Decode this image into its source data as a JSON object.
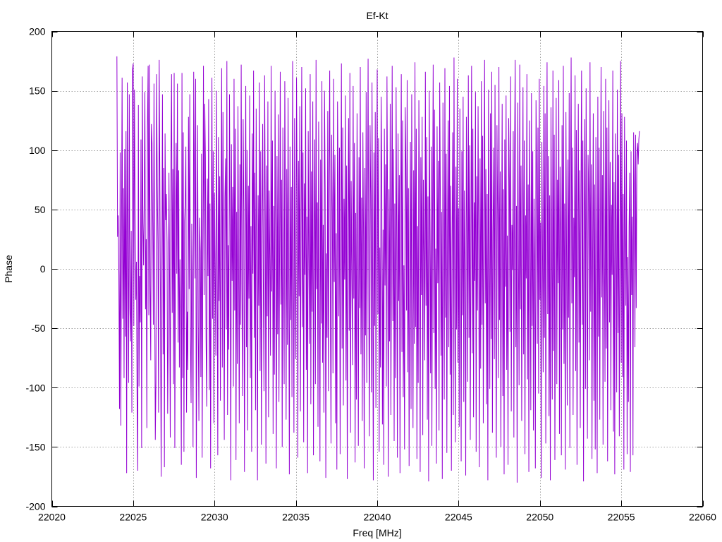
{
  "chart_data": {
    "type": "line",
    "title": "Ef-Kt",
    "xlabel": "Freq [MHz]",
    "ylabel": "Phase",
    "xlim": [
      22020,
      22060
    ],
    "ylim": [
      -200,
      200
    ],
    "xticks": [
      22020,
      22025,
      22030,
      22035,
      22040,
      22045,
      22050,
      22055,
      22060
    ],
    "yticks": [
      -200,
      -150,
      -100,
      -50,
      0,
      50,
      100,
      150,
      200
    ],
    "grid": true,
    "legend": "none",
    "series": [
      {
        "color": "#9400d3",
        "x_range": [
          22024.0,
          22056.0
        ],
        "x_step": 0.04,
        "values": [
          179,
          27,
          45,
          -5,
          -118,
          98,
          -132,
          20,
          161,
          -42,
          68,
          -92,
          101,
          -57,
          116,
          -172,
          157,
          16,
          -96,
          147,
          -33,
          -61,
          32,
          -121,
          168,
          173,
          -48,
          151,
          53,
          -26,
          6,
          -107,
          -170,
          138,
          -99,
          -6,
          -45,
          109,
          -151,
          162,
          39,
          3,
          59,
          149,
          -34,
          25,
          -134,
          120,
          171,
          -39,
          172,
          -14,
          -77,
          122,
          106,
          39,
          -47,
          156,
          1,
          -144,
          -95,
          164,
          71,
          22,
          -121,
          176,
          72,
          -33,
          -175,
          -6,
          147,
          -72,
          85,
          -167,
          114,
          41,
          63,
          23,
          -122,
          -48,
          81,
          -12,
          -142,
          90,
          164,
          -37,
          84,
          -97,
          165,
          -151,
          27,
          106,
          -4,
          156,
          -62,
          83,
          -83,
          8,
          -53,
          -165,
          165,
          -92,
          115,
          -154,
          40,
          57,
          103,
          -121,
          -36,
          -85,
          128,
          -17,
          147,
          -60,
          -113,
          38,
          -20,
          -150,
          166,
          82,
          -8,
          160,
          -176,
          -15,
          121,
          -44,
          -128,
          43,
          15,
          -91,
          97,
          -159,
          3,
          171,
          -22,
          139,
          94,
          -58,
          -116,
          76,
          -6,
          143,
          -102,
          55,
          -168,
          24,
          161,
          -42,
          99,
          -130,
          64,
          0,
          -73,
          150,
          12,
          -157,
          111,
          -27,
          78,
          -111,
          45,
          169,
          -83,
          132,
          -3,
          -144,
          60,
          93,
          -51,
          175,
          -123,
          20,
          -68,
          147,
          33,
          -178,
          105,
          -10,
          69,
          -99,
          160,
          -35,
          118,
          -161,
          48,
          -80,
          137,
          8,
          -130,
          88,
          -47,
          172,
          -14,
          -107,
          126,
          51,
          -171,
          17,
          154,
          -66,
          100,
          -136,
          70,
          -25,
          146,
          -92,
          36,
          -154,
          114,
          -4,
          167,
          -58,
          81,
          -119,
          135,
          11,
          -178,
          62,
          -31,
          157,
          -86,
          99,
          -148,
          28,
          122,
          -12,
          -103,
          163,
          45,
          -164,
          87,
          -40,
          141,
          -125,
          66,
          7,
          -73,
          171,
          -19,
          108,
          -139,
          53,
          -89,
          150,
          22,
          -168,
          95,
          -55,
          130,
          -112,
          14,
          166,
          -30,
          75,
          -150,
          119,
          -1,
          -97,
          158,
          41,
          -127,
          84,
          -64,
          144,
          2,
          -173,
          103,
          -43,
          69,
          -108,
          175,
          18,
          -138,
          127,
          -8,
          -76,
          161,
          58,
          -159,
          91,
          -23,
          137,
          -120,
          31,
          170,
          -49,
          98,
          -146,
          72,
          -5,
          152,
          -85,
          44,
          -172,
          116,
          10,
          -63,
          164,
          -114,
          82,
          -36,
          141,
          -157,
          26,
          109,
          -97,
          176,
          -17,
          56,
          -133,
          124,
          4,
          -162,
          92,
          -46,
          158,
          -79,
          37,
          -121,
          150,
          66,
          -176,
          13,
          -58,
          133,
          -103,
          79,
          167,
          -29,
          -147,
          113,
          50,
          -88,
          160,
          -11,
          96,
          -130,
          30,
          -169,
          141,
          71,
          -40,
          102,
          -156,
          21,
          173,
          -67,
          119,
          -115,
          59,
          -9,
          146,
          -94,
          87,
          -177,
          34,
          127,
          -52,
          165,
          -138,
          74,
          1,
          -81,
          154,
          -25,
          106,
          -163,
          47,
          -110,
          131,
          15,
          -149,
          94,
          -33,
          170,
          -72,
          60,
          -128,
          115,
          27,
          -168,
          85,
          -56,
          149,
          -96,
          41,
          177,
          -20,
          -141,
          121,
          63,
          -104,
          157,
          -7,
          -178,
          98,
          -48,
          132,
          -117,
          52,
          168,
          -38,
          110,
          -154,
          18,
          -83,
          145,
          77,
          -131,
          33,
          -165,
          118,
          -14,
          88,
          -99,
          162,
          46,
          -175,
          67,
          -61,
          139,
          -123,
          9,
          171,
          -44,
          101,
          -145,
          55,
          -92,
          153,
          24,
          -159,
          114,
          -27,
          79,
          -172,
          42,
          164,
          -70,
          125,
          -108,
          3,
          -152,
          136,
          89,
          -35,
          159,
          -87,
          68,
          -166,
          19,
          107,
          -118,
          147,
          -2,
          -134,
          83,
          -63,
          174,
          -49,
          118,
          -160,
          36,
          -96,
          142,
          57,
          -171,
          94,
          -22,
          128,
          -140,
          75,
          12,
          -77,
          166,
          -31,
          111,
          -127,
          61,
          -179,
          150,
          29,
          -88,
          103,
          -149,
          43,
          172,
          -54,
          134,
          -101,
          17,
          -164,
          120,
          -12,
          91,
          -136,
          157,
          64,
          -73,
          48,
          -177,
          140,
          5,
          -110,
          169,
          -41,
          97,
          -155,
          33,
          125,
          -66,
          154,
          -89,
          70,
          -170,
          22,
          115,
          -123,
          178,
          -18,
          -146,
          86,
          -51,
          160,
          -79,
          51,
          -133,
          135,
          8,
          -162,
          99,
          -39,
          145,
          -112,
          66,
          -1,
          -174,
          128,
          39,
          -95,
          163,
          -58,
          104,
          -144,
          26,
          171,
          -71,
          118,
          -125,
          56,
          -10,
          149,
          -154,
          78,
          -35,
          137,
          4,
          -167,
          93,
          -84,
          158,
          -47,
          112,
          -130,
          40,
          176,
          -29,
          84,
          -114,
          63,
          -178,
          151,
          18,
          -101,
          131,
          -59,
          166,
          -138,
          31,
          102,
          -76,
          155,
          -21,
          -159,
          121,
          49,
          -92,
          170,
          -43,
          82,
          -150,
          13,
          139,
          -107,
          67,
          -173,
          109,
          -15,
          146,
          -85,
          28,
          -165,
          127,
          74,
          -53,
          162,
          -120,
          37,
          -1,
          116,
          -142,
          94,
          176,
          -66,
          53,
          -180,
          140,
          11,
          -98,
          172,
          -34,
          87,
          -128,
          22,
          153,
          -72,
          108,
          -156,
          45,
          -8,
          164,
          -93,
          71,
          -171,
          125,
          34,
          -119,
          148,
          -48,
          99,
          -136,
          59,
          1,
          -168,
          142,
          81,
          -63,
          119,
          -105,
          160,
          -26,
          39,
          -176,
          107,
          16,
          -87,
          154,
          -58,
          131,
          -147,
          48,
          174,
          -38,
          95,
          -124,
          62,
          -178,
          136,
          23,
          -110,
          167,
          -69,
          113,
          -161,
          8,
          144,
          -97,
          75,
          -12,
          159,
          -139,
          86,
          30,
          -157,
          121,
          -51,
          171,
          -80,
          55,
          -169,
          132,
          6,
          -115,
          92,
          -41,
          148,
          -151,
          69,
          178,
          -29,
          102,
          -123,
          43,
          -7,
          163,
          -86,
          117,
          -165,
          20,
          139,
          -62,
          83,
          -134,
          57,
          167,
          -47,
          108,
          -179,
          34,
          126,
          -101,
          152,
          -17,
          -143,
          96,
          65,
          -77,
          174,
          -36,
          88,
          -160,
          14,
          131,
          -111,
          71,
          -152,
          111,
          2,
          -172,
          145,
          -57,
          102,
          -127,
          47,
          170,
          -24,
          79,
          -148,
          133,
          18,
          -95,
          160,
          -67,
          119,
          -162,
          28,
          142,
          -45,
          90,
          -119,
          54,
          -5,
          167,
          -137,
          73,
          -173,
          114,
          37,
          -104,
          151,
          -54,
          96,
          -141,
          15,
          175,
          -79,
          131,
          -91,
          63,
          -169,
          128,
          41,
          -31,
          108,
          -156,
          10,
          -112,
          35,
          81,
          -171,
          99,
          -22,
          44,
          -157,
          115,
          69,
          -66,
          113,
          -33,
          97,
          106,
          88,
          109,
          116
        ]
      }
    ]
  }
}
